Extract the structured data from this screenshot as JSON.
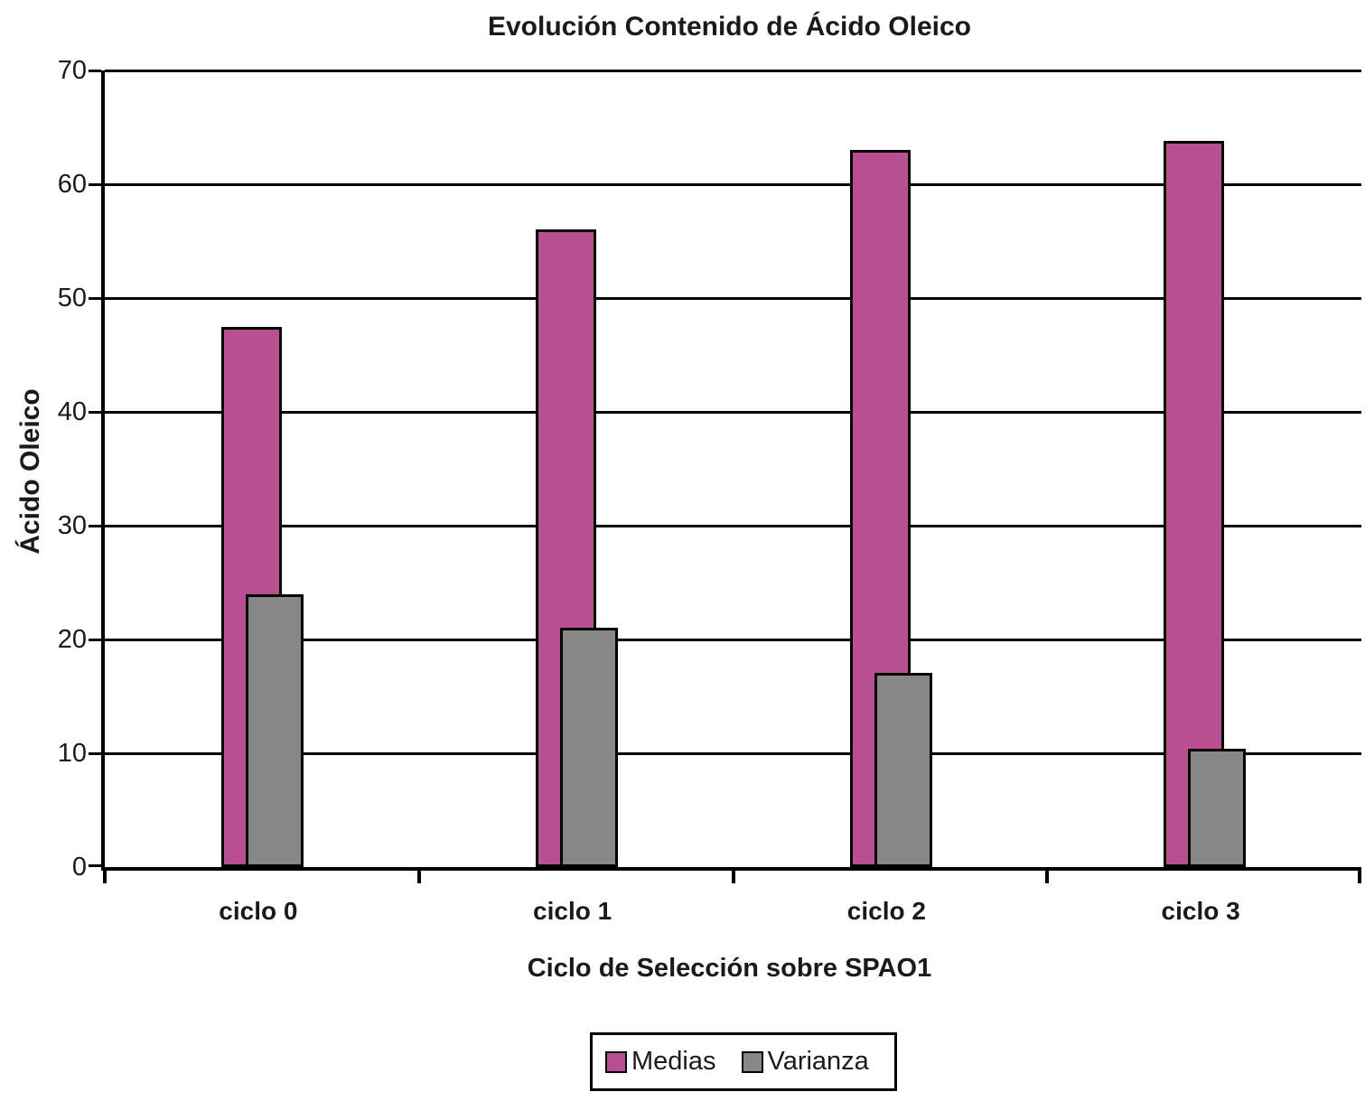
{
  "chart_data": {
    "type": "bar",
    "title": "Evolución Contenido de Ácido Oleico",
    "xlabel": "Ciclo de Selección sobre SPAO1",
    "ylabel": "Ácido Oleico",
    "categories": [
      "ciclo 0",
      "ciclo 1",
      "ciclo 2",
      "ciclo 3"
    ],
    "series": [
      {
        "name": "Medias",
        "color": "#b94f90",
        "values": [
          47.5,
          56.0,
          63.0,
          63.8
        ]
      },
      {
        "name": "Varianza",
        "color": "#878787",
        "values": [
          24.0,
          21.0,
          17.1,
          10.4
        ]
      }
    ],
    "ylim": [
      0,
      70
    ],
    "yticks": [
      0,
      10,
      20,
      30,
      40,
      50,
      60,
      70
    ],
    "grid": true,
    "grid_color": "#000000",
    "background_color": "#ffffff",
    "legend_position": "bottom",
    "bar_overlap": true
  }
}
